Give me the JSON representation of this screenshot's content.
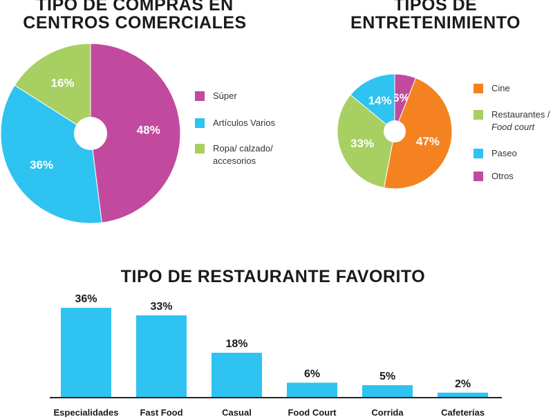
{
  "colors": {
    "super": "#c24a9e",
    "articulos": "#2ec3f0",
    "ropa": "#a8cf62",
    "cine": "#f58220",
    "restaurantes": "#a8cf62",
    "paseo": "#2ec3f0",
    "otros": "#c24a9e",
    "bar": "#2ec3f0"
  },
  "chart_data": [
    {
      "type": "pie",
      "title": "TIPO DE COMPRAS EN CENTROS COMERCIALES",
      "slices": [
        {
          "label": "Súper",
          "value": 48,
          "display": "48%"
        },
        {
          "label": "Artículos Varios",
          "value": 36,
          "display": "36%"
        },
        {
          "label": "Ropa/ calzado/ accesorios",
          "value": 16,
          "display": "16%"
        }
      ],
      "legend": [
        "Súper",
        "Artículos Varios",
        "Ropa/ calzado/",
        "accesorios"
      ],
      "legend_position": "right"
    },
    {
      "type": "pie",
      "title": "TIPOS DE ENTRETENIMIENTO",
      "slices": [
        {
          "label": "Otros",
          "value": 6,
          "display": "6%"
        },
        {
          "label": "Cine",
          "value": 47,
          "display": "47%"
        },
        {
          "label": "Restaurantes / Food court",
          "value": 33,
          "display": "33%"
        },
        {
          "label": "Paseo",
          "value": 14,
          "display": "14%"
        }
      ],
      "legend": [
        "Cine",
        "Restaurantes /",
        "Food court",
        "Paseo",
        "Otros"
      ],
      "legend_position": "right"
    },
    {
      "type": "bar",
      "title": "TIPO DE RESTAURANTE FAVORITO",
      "categories": [
        "Especialidades",
        "Fast Food",
        "Casual",
        "Food Court",
        "Corrida",
        "Cafeterías"
      ],
      "values": [
        36,
        33,
        18,
        6,
        5,
        2
      ],
      "labels": [
        "36%",
        "33%",
        "18%",
        "6%",
        "5%",
        "2%"
      ],
      "ylim": [
        0,
        40
      ]
    }
  ]
}
